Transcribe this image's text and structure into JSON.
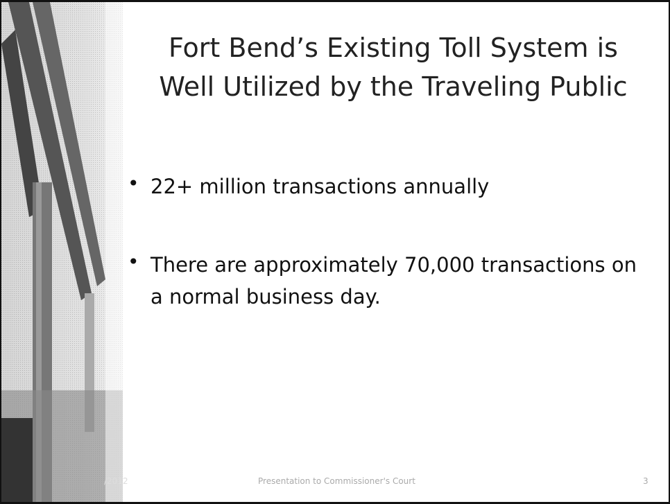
{
  "title": {
    "lines": [
      "Fort Bend’s Existing Toll System is",
      "Well Utilized by the Traveling Public"
    ]
  },
  "bullets": [
    "22+ million transactions annually",
    "There are approximately 70,000 transactions on a normal business day."
  ],
  "footer": {
    "date": "/2012",
    "text": "Presentation to Commissioner's Court",
    "page": "3"
  }
}
